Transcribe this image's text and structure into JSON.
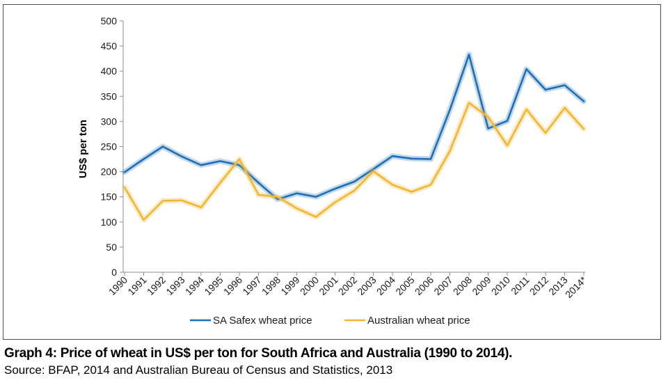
{
  "chart_data": {
    "type": "line",
    "x": [
      "1990",
      "1991",
      "1992",
      "1993",
      "1994",
      "1995",
      "1996",
      "1997",
      "1998",
      "1999",
      "2000",
      "2001",
      "2002",
      "2003",
      "2004",
      "2005",
      "2006",
      "2007",
      "2008",
      "2009",
      "2010",
      "2011",
      "2012",
      "2013",
      "2014*"
    ],
    "series": [
      {
        "name": "SA Safex wheat price",
        "color": "#1f6fb4",
        "values": [
          199,
          225,
          250,
          230,
          213,
          221,
          213,
          178,
          145,
          157,
          150,
          166,
          180,
          205,
          231,
          226,
          225,
          323,
          433,
          286,
          301,
          404,
          363,
          372,
          340
        ]
      },
      {
        "name": "Australian wheat price",
        "color": "#f2b632",
        "values": [
          169,
          104,
          142,
          143,
          129,
          178,
          225,
          154,
          150,
          127,
          110,
          139,
          162,
          201,
          174,
          160,
          174,
          241,
          337,
          309,
          252,
          324,
          277,
          327,
          285
        ]
      }
    ],
    "ylabel": "US$ per ton",
    "ylim": [
      0,
      500
    ],
    "yticks": [
      "0",
      "50",
      "100",
      "150",
      "200",
      "250",
      "300",
      "350",
      "400",
      "450",
      "500"
    ],
    "legend": "bottom",
    "grid": false
  },
  "caption": {
    "title": "Graph 4: Price of wheat in US$ per ton for South Africa and Australia (1990 to 2014).",
    "source": "Source: BFAP, 2014 and Australian Bureau of Census and Statistics, 2013"
  }
}
